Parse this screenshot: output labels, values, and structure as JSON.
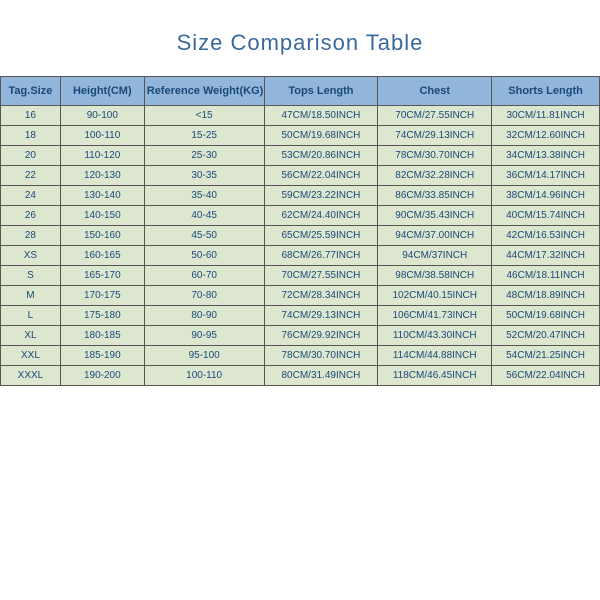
{
  "title": "Size Comparison Table",
  "columns": [
    "Tag.Size",
    "Height(CM)",
    "Reference Weight(KG)",
    "Tops Length",
    "Chest",
    "Shorts Length"
  ],
  "rows": [
    [
      "16",
      "90-100",
      "<15",
      "47CM/18.50INCH",
      "70CM/27.55INCH",
      "30CM/11.81INCH"
    ],
    [
      "18",
      "100-110",
      "15-25",
      "50CM/19.68INCH",
      "74CM/29.13INCH",
      "32CM/12.60INCH"
    ],
    [
      "20",
      "110-120",
      "25-30",
      "53CM/20.86INCH",
      "78CM/30.70INCH",
      "34CM/13.38INCH"
    ],
    [
      "22",
      "120-130",
      "30-35",
      "56CM/22.04INCH",
      "82CM/32.28INCH",
      "36CM/14.17INCH"
    ],
    [
      "24",
      "130-140",
      "35-40",
      "59CM/23.22INCH",
      "86CM/33.85INCH",
      "38CM/14.96INCH"
    ],
    [
      "26",
      "140-150",
      "40-45",
      "62CM/24.40INCH",
      "90CM/35.43INCH",
      "40CM/15.74INCH"
    ],
    [
      "28",
      "150-160",
      "45-50",
      "65CM/25.59INCH",
      "94CM/37.00INCH",
      "42CM/16.53INCH"
    ],
    [
      "XS",
      "160-165",
      "50-60",
      "68CM/26.77INCH",
      "94CM/37INCH",
      "44CM/17.32INCH"
    ],
    [
      "S",
      "165-170",
      "60-70",
      "70CM/27.55INCH",
      "98CM/38.58INCH",
      "46CM/18.11INCH"
    ],
    [
      "M",
      "170-175",
      "70-80",
      "72CM/28.34INCH",
      "102CM/40.15INCH",
      "48CM/18.89INCH"
    ],
    [
      "L",
      "175-180",
      "80-90",
      "74CM/29.13INCH",
      "106CM/41.73INCH",
      "50CM/19.68INCH"
    ],
    [
      "XL",
      "180-185",
      "90-95",
      "76CM/29.92INCH",
      "110CM/43.30INCH",
      "52CM/20.47INCH"
    ],
    [
      "XXL",
      "185-190",
      "95-100",
      "78CM/30.70INCH",
      "114CM/44.88INCH",
      "54CM/21.25INCH"
    ],
    [
      "XXXL",
      "190-200",
      "100-110",
      "80CM/31.49INCH",
      "118CM/46.45INCH",
      "56CM/22.04INCH"
    ]
  ],
  "styling": {
    "title_color": "#3a6a9a",
    "title_fontsize": 22,
    "header_bg": "#92b5db",
    "cell_bg": "#dde6cf",
    "border_color": "#555555",
    "text_color": "#1a4a7a",
    "header_fontsize": 11,
    "cell_fontsize": 10,
    "col_widths": [
      "10%",
      "14%",
      "20%",
      "19%",
      "19%",
      "18%"
    ]
  }
}
